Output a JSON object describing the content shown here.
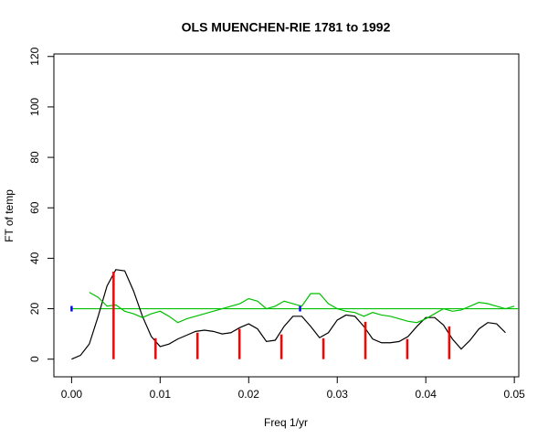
{
  "chart_data": {
    "type": "line",
    "title": "OLS MUENCHEN-RIE 1781 to 1992",
    "x_label": "Freq 1/yr",
    "y_label": "FT of temp",
    "xlim": [
      -0.002,
      0.0505
    ],
    "ylim": [
      -7,
      121
    ],
    "xticks": [
      {
        "value": 0,
        "label": "0.00"
      },
      0.01,
      0.02,
      0.03,
      0.04,
      0.05
    ],
    "yticks": [
      0,
      20,
      40,
      60,
      80,
      100,
      120
    ],
    "series": [
      {
        "color": "#000000",
        "x": [
          0,
          0.001,
          0.002,
          0.003,
          0.004,
          0.005,
          0.006,
          0.007,
          0.008,
          0.009,
          0.01,
          0.011,
          0.012,
          0.013,
          0.014,
          0.015,
          0.016,
          0.017,
          0.018,
          0.019,
          0.02,
          0.021,
          0.022,
          0.023,
          0.024,
          0.025,
          0.026,
          0.027,
          0.028,
          0.029,
          0.03,
          0.031,
          0.032,
          0.033,
          0.034,
          0.035,
          0.036,
          0.037,
          0.038,
          0.039,
          0.04,
          0.041,
          0.042,
          0.043,
          0.044,
          0.045,
          0.046,
          0.047,
          0.048,
          0.049
        ],
        "values": [
          0,
          1.5,
          6,
          17,
          29,
          35.5,
          35,
          27,
          17,
          9,
          5,
          6,
          8,
          9.5,
          11,
          11.5,
          11,
          10,
          10.5,
          12.5,
          14,
          12,
          7,
          7.5,
          13,
          17,
          17,
          13,
          8.5,
          10.5,
          15.5,
          17.5,
          17,
          13,
          8,
          6.5,
          6.5,
          7,
          9,
          13,
          16.5,
          16.5,
          13.5,
          8,
          4,
          7.5,
          12,
          14.5,
          14,
          10.5
        ]
      },
      {
        "color": "#00c000",
        "x": [
          0.002,
          0.003,
          0.004,
          0.005,
          0.006,
          0.007,
          0.008,
          0.009,
          0.01,
          0.011,
          0.012,
          0.013,
          0.014,
          0.015,
          0.016,
          0.017,
          0.018,
          0.019,
          0.02,
          0.021,
          0.022,
          0.023,
          0.024,
          0.025,
          0.026,
          0.027,
          0.028,
          0.029,
          0.03,
          0.031,
          0.032,
          0.033,
          0.034,
          0.035,
          0.036,
          0.037,
          0.038,
          0.039,
          0.04,
          0.041,
          0.042,
          0.043,
          0.044,
          0.045,
          0.046,
          0.047,
          0.048,
          0.049,
          0.05
        ],
        "values": [
          26.5,
          24.5,
          21,
          21.5,
          19,
          18,
          16.5,
          18,
          19,
          17,
          14.5,
          16,
          17,
          18,
          19,
          20,
          21,
          22,
          24,
          23,
          20,
          21,
          23,
          22,
          21,
          26,
          26,
          22,
          20,
          19,
          18.5,
          17,
          18.5,
          17.5,
          17,
          16,
          15,
          14.5,
          16,
          18,
          20,
          19,
          19.5,
          21,
          22.5,
          22,
          21,
          20,
          21
        ]
      }
    ],
    "hline": {
      "value": 20,
      "color": "#00c000"
    },
    "spikes": {
      "color": "#ff0000",
      "x": [
        0.00474,
        0.00948,
        0.01422,
        0.01896,
        0.0237,
        0.02844,
        0.03318,
        0.03791,
        0.04265
      ],
      "values": [
        34.7,
        8.3,
        10.5,
        12,
        9.8,
        8.3,
        14.8,
        8,
        13
      ]
    },
    "markers": {
      "color": "#0000ff",
      "x": [
        0,
        0.0258
      ],
      "values": [
        20,
        20
      ]
    }
  }
}
